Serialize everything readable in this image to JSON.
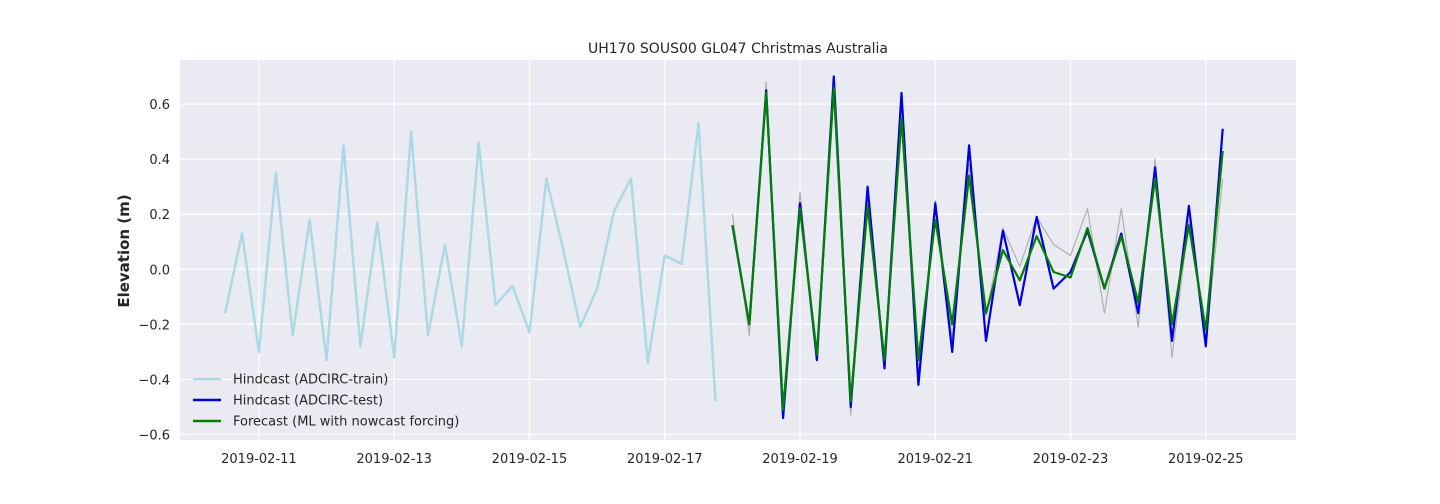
{
  "chart_data": {
    "type": "line",
    "title": "UH170 SOUS00 GL047 Christmas Australia",
    "xlabel": "",
    "ylabel": "Elevation (m)",
    "x_ticks": [
      "2019-02-11",
      "2019-02-13",
      "2019-02-15",
      "2019-02-17",
      "2019-02-19",
      "2019-02-21",
      "2019-02-23",
      "2019-02-25"
    ],
    "y_ticks": [
      "−0.6",
      "−0.4",
      "−0.2",
      "0.0",
      "0.2",
      "0.4",
      "0.6"
    ],
    "xlim": [
      "2019-02-09 20:00",
      "2019-02-26 08:00"
    ],
    "ylim": [
      -0.62,
      0.76
    ],
    "grid": true,
    "legend_position": "lower-left",
    "series": [
      {
        "name": "Hindcast (ADCIRC-train)",
        "color": "#add8e6",
        "points": [
          [
            "2019-02-10 12:00",
            -0.16
          ],
          [
            "2019-02-10 18:00",
            0.13
          ],
          [
            "2019-02-11 00:00",
            -0.3
          ],
          [
            "2019-02-11 06:00",
            0.35
          ],
          [
            "2019-02-11 12:00",
            -0.24
          ],
          [
            "2019-02-11 18:00",
            0.18
          ],
          [
            "2019-02-12 00:00",
            -0.33
          ],
          [
            "2019-02-12 06:00",
            0.45
          ],
          [
            "2019-02-12 12:00",
            -0.28
          ],
          [
            "2019-02-12 18:00",
            0.17
          ],
          [
            "2019-02-13 00:00",
            -0.32
          ],
          [
            "2019-02-13 06:00",
            0.5
          ],
          [
            "2019-02-13 12:00",
            -0.24
          ],
          [
            "2019-02-13 18:00",
            0.09
          ],
          [
            "2019-02-14 00:00",
            -0.28
          ],
          [
            "2019-02-14 06:00",
            0.46
          ],
          [
            "2019-02-14 12:00",
            -0.13
          ],
          [
            "2019-02-14 18:00",
            -0.06
          ],
          [
            "2019-02-15 00:00",
            -0.23
          ],
          [
            "2019-02-15 06:00",
            0.33
          ],
          [
            "2019-02-15 12:00",
            0.07
          ],
          [
            "2019-02-15 18:00",
            -0.21
          ],
          [
            "2019-02-16 00:00",
            -0.07
          ],
          [
            "2019-02-16 06:00",
            0.21
          ],
          [
            "2019-02-16 12:00",
            0.33
          ],
          [
            "2019-02-16 18:00",
            -0.34
          ],
          [
            "2019-02-17 00:00",
            0.05
          ],
          [
            "2019-02-17 06:00",
            0.02
          ],
          [
            "2019-02-17 12:00",
            0.53
          ],
          [
            "2019-02-17 18:00",
            -0.48
          ]
        ]
      },
      {
        "name": "",
        "color": "#b0b0b0",
        "points": [
          [
            "2019-02-18 00:00",
            0.2
          ],
          [
            "2019-02-18 06:00",
            -0.24
          ],
          [
            "2019-02-18 12:00",
            0.68
          ],
          [
            "2019-02-18 18:00",
            -0.52
          ],
          [
            "2019-02-19 00:00",
            0.28
          ],
          [
            "2019-02-19 06:00",
            -0.33
          ],
          [
            "2019-02-19 12:00",
            0.65
          ],
          [
            "2019-02-19 18:00",
            -0.53
          ],
          [
            "2019-02-20 00:00",
            0.25
          ],
          [
            "2019-02-20 06:00",
            -0.35
          ],
          [
            "2019-02-20 12:00",
            0.53
          ],
          [
            "2019-02-20 18:00",
            -0.38
          ],
          [
            "2019-02-21 00:00",
            0.25
          ],
          [
            "2019-02-21 06:00",
            -0.25
          ],
          [
            "2019-02-21 12:00",
            0.38
          ],
          [
            "2019-02-21 18:00",
            -0.17
          ],
          [
            "2019-02-22 00:00",
            0.15
          ],
          [
            "2019-02-22 06:00",
            0.01
          ],
          [
            "2019-02-22 12:00",
            0.19
          ],
          [
            "2019-02-22 18:00",
            0.09
          ],
          [
            "2019-02-23 00:00",
            0.05
          ],
          [
            "2019-02-23 06:00",
            0.22
          ],
          [
            "2019-02-23 12:00",
            -0.16
          ],
          [
            "2019-02-23 18:00",
            0.22
          ],
          [
            "2019-02-24 00:00",
            -0.21
          ],
          [
            "2019-02-24 06:00",
            0.4
          ],
          [
            "2019-02-24 12:00",
            -0.32
          ],
          [
            "2019-02-24 18:00",
            0.18
          ],
          [
            "2019-02-25 00:00",
            -0.27
          ],
          [
            "2019-02-25 06:00",
            0.33
          ]
        ]
      },
      {
        "name": "Hindcast (ADCIRC-test)",
        "color": "#0000dd",
        "points": [
          [
            "2019-02-18 00:00",
            0.16
          ],
          [
            "2019-02-18 06:00",
            -0.2
          ],
          [
            "2019-02-18 12:00",
            0.65
          ],
          [
            "2019-02-18 18:00",
            -0.54
          ],
          [
            "2019-02-19 00:00",
            0.24
          ],
          [
            "2019-02-19 06:00",
            -0.33
          ],
          [
            "2019-02-19 12:00",
            0.7
          ],
          [
            "2019-02-19 18:00",
            -0.5
          ],
          [
            "2019-02-20 00:00",
            0.3
          ],
          [
            "2019-02-20 06:00",
            -0.36
          ],
          [
            "2019-02-20 12:00",
            0.64
          ],
          [
            "2019-02-20 18:00",
            -0.42
          ],
          [
            "2019-02-21 00:00",
            0.24
          ],
          [
            "2019-02-21 06:00",
            -0.3
          ],
          [
            "2019-02-21 12:00",
            0.45
          ],
          [
            "2019-02-21 18:00",
            -0.26
          ],
          [
            "2019-02-22 00:00",
            0.14
          ],
          [
            "2019-02-22 06:00",
            -0.13
          ],
          [
            "2019-02-22 12:00",
            0.19
          ],
          [
            "2019-02-22 18:00",
            -0.07
          ],
          [
            "2019-02-23 00:00",
            -0.01
          ],
          [
            "2019-02-23 06:00",
            0.14
          ],
          [
            "2019-02-23 12:00",
            -0.07
          ],
          [
            "2019-02-23 18:00",
            0.13
          ],
          [
            "2019-02-24 00:00",
            -0.16
          ],
          [
            "2019-02-24 06:00",
            0.37
          ],
          [
            "2019-02-24 12:00",
            -0.26
          ],
          [
            "2019-02-24 18:00",
            0.23
          ],
          [
            "2019-02-25 00:00",
            -0.28
          ],
          [
            "2019-02-25 06:00",
            0.51
          ]
        ]
      },
      {
        "name": "Forecast (ML with nowcast forcing)",
        "color": "#008000",
        "points": [
          [
            "2019-02-18 00:00",
            0.16
          ],
          [
            "2019-02-18 06:00",
            -0.2
          ],
          [
            "2019-02-18 12:00",
            0.64
          ],
          [
            "2019-02-18 18:00",
            -0.51
          ],
          [
            "2019-02-19 00:00",
            0.22
          ],
          [
            "2019-02-19 06:00",
            -0.31
          ],
          [
            "2019-02-19 12:00",
            0.66
          ],
          [
            "2019-02-19 18:00",
            -0.48
          ],
          [
            "2019-02-20 00:00",
            0.23
          ],
          [
            "2019-02-20 06:00",
            -0.33
          ],
          [
            "2019-02-20 12:00",
            0.55
          ],
          [
            "2019-02-20 18:00",
            -0.33
          ],
          [
            "2019-02-21 00:00",
            0.18
          ],
          [
            "2019-02-21 06:00",
            -0.2
          ],
          [
            "2019-02-21 12:00",
            0.34
          ],
          [
            "2019-02-21 18:00",
            -0.16
          ],
          [
            "2019-02-22 00:00",
            0.07
          ],
          [
            "2019-02-22 06:00",
            -0.04
          ],
          [
            "2019-02-22 12:00",
            0.12
          ],
          [
            "2019-02-22 18:00",
            -0.01
          ],
          [
            "2019-02-23 00:00",
            -0.03
          ],
          [
            "2019-02-23 06:00",
            0.15
          ],
          [
            "2019-02-23 12:00",
            -0.07
          ],
          [
            "2019-02-23 18:00",
            0.12
          ],
          [
            "2019-02-24 00:00",
            -0.12
          ],
          [
            "2019-02-24 06:00",
            0.33
          ],
          [
            "2019-02-24 12:00",
            -0.2
          ],
          [
            "2019-02-24 18:00",
            0.16
          ],
          [
            "2019-02-25 00:00",
            -0.22
          ],
          [
            "2019-02-25 06:00",
            0.43
          ]
        ]
      }
    ]
  }
}
